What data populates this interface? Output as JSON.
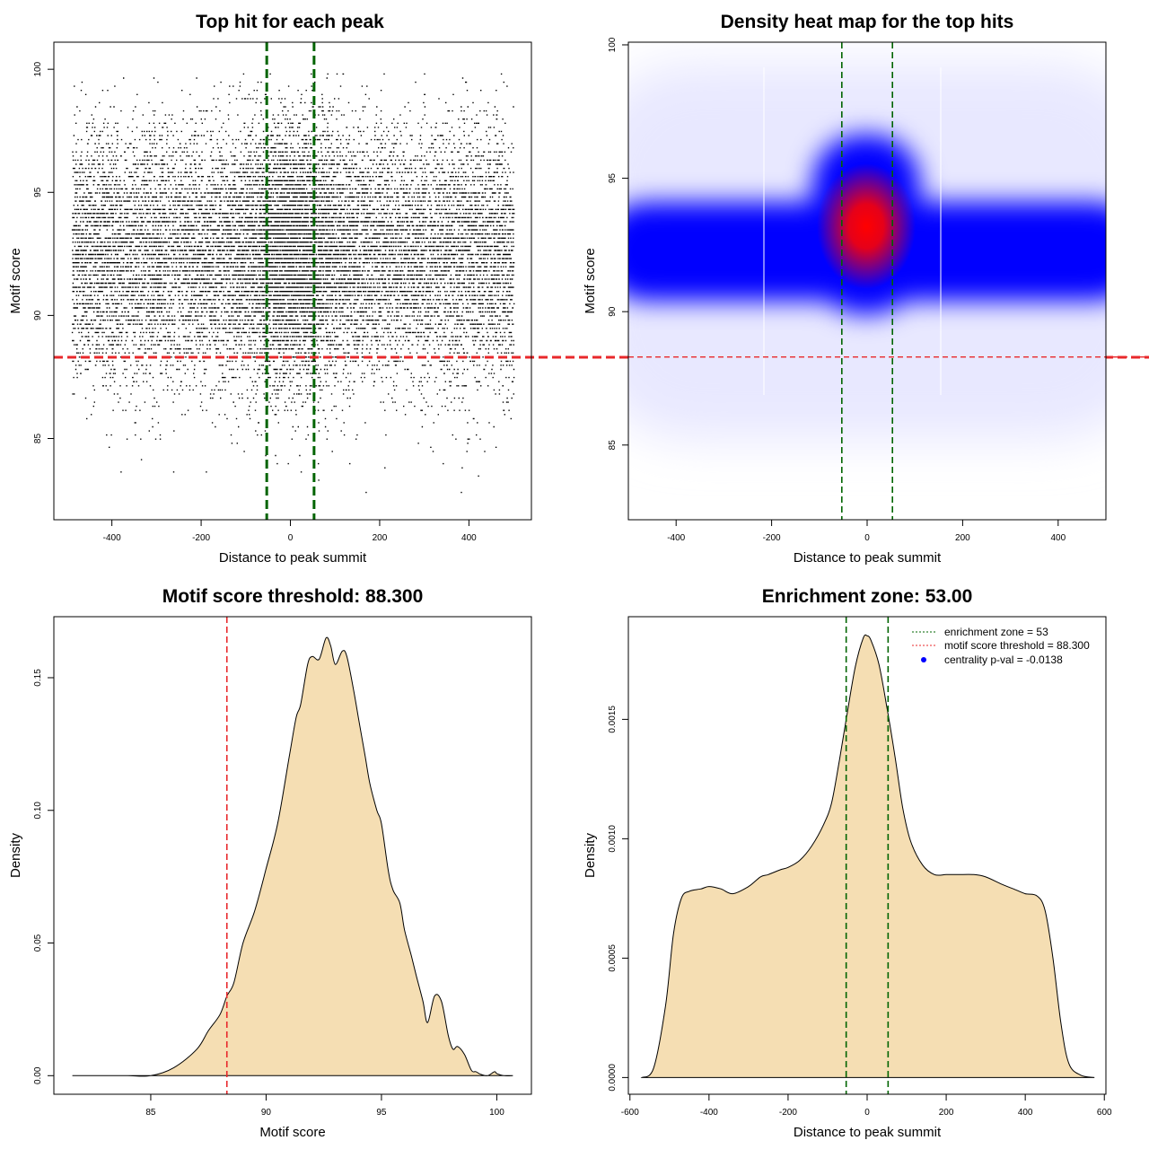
{
  "chart_data": [
    {
      "type": "scatter",
      "title": "Top hit for each peak",
      "xlabel": "Distance to peak summit",
      "ylabel": "Motif score",
      "xlim": [
        -530,
        540
      ],
      "ylim": [
        81.7,
        101.1
      ],
      "xticks": [
        -400,
        -200,
        0,
        200,
        400
      ],
      "yticks": [
        85,
        90,
        95,
        100
      ],
      "enrichment_zone_lines_x": [
        -53,
        53
      ],
      "threshold_line_y": 88.3,
      "point_distribution": {
        "x_range": [
          -490,
          500
        ],
        "y_center": 92.5,
        "y_spread": 2.6,
        "density_peak_x": 0,
        "approx_points": 16000
      },
      "colors": {
        "points": "#000000",
        "zone_lines": "#006400",
        "threshold_line": "#e8282b"
      }
    },
    {
      "type": "heatmap",
      "title": "Density heat map for the top hits",
      "xlabel": "Distance to peak summit",
      "ylabel": "Motif score",
      "xlim": [
        -500,
        500
      ],
      "ylim": [
        82.2,
        100.1
      ],
      "xticks": [
        -400,
        -200,
        0,
        200,
        400
      ],
      "yticks": [
        85,
        90,
        95,
        100
      ],
      "enrichment_zone_lines_x": [
        -53,
        53
      ],
      "threshold_line_y": 88.3,
      "density_peak": {
        "x": 0,
        "y": 93.3
      },
      "colors": {
        "low": "#ffffff",
        "mid": "#0000ff",
        "high": "#ff0000",
        "zone_lines": "#006400",
        "threshold_line": "#e8282b"
      }
    },
    {
      "type": "area",
      "title": "Motif score threshold: 88.300",
      "xlabel": "Motif score",
      "ylabel": "Density",
      "xlim": [
        80.8,
        101.5
      ],
      "ylim": [
        -0.007,
        0.173
      ],
      "xticks": [
        85,
        90,
        95,
        100
      ],
      "yticks": [
        0.0,
        0.05,
        0.1,
        0.15
      ],
      "ytick_labels": [
        "0.00",
        "0.05",
        "0.10",
        "0.15"
      ],
      "threshold_line_x": 88.3,
      "x": [
        81.6,
        83,
        84,
        85,
        86,
        87,
        87.5,
        88,
        88.3,
        88.6,
        89,
        89.5,
        90,
        90.5,
        91,
        91.3,
        91.5,
        91.8,
        92,
        92.3,
        92.6,
        92.8,
        93,
        93.3,
        93.5,
        93.8,
        94,
        94.3,
        94.5,
        94.8,
        95,
        95.3,
        95.5,
        95.8,
        96,
        96.3,
        96.5,
        96.8,
        97,
        97.3,
        97.6,
        97.9,
        98.1,
        98.3,
        98.6,
        98.9,
        99.1,
        99.3,
        99.6,
        99.9,
        100,
        100.3,
        100.7
      ],
      "y": [
        0.0,
        0.0,
        0.0,
        0.0,
        0.003,
        0.01,
        0.017,
        0.023,
        0.03,
        0.035,
        0.05,
        0.062,
        0.078,
        0.095,
        0.12,
        0.135,
        0.14,
        0.155,
        0.158,
        0.157,
        0.165,
        0.162,
        0.155,
        0.16,
        0.158,
        0.145,
        0.135,
        0.12,
        0.11,
        0.1,
        0.095,
        0.077,
        0.07,
        0.065,
        0.055,
        0.045,
        0.038,
        0.028,
        0.02,
        0.03,
        0.028,
        0.015,
        0.01,
        0.011,
        0.008,
        0.002,
        0.0015,
        0.0005,
        0.0,
        0.0015,
        0.0008,
        0.0,
        0.0
      ],
      "colors": {
        "fill": "#f5deb3",
        "line": "#000000",
        "threshold_line": "#e8282b"
      }
    },
    {
      "type": "area",
      "title": "Enrichment zone: 53.00",
      "xlabel": "Distance to peak summit",
      "ylabel": "Density",
      "xlim": [
        -604,
        604
      ],
      "ylim": [
        -7e-05,
        0.00193
      ],
      "xticks": [
        -600,
        -400,
        -200,
        0,
        200,
        400,
        600
      ],
      "yticks": [
        0.0,
        0.0005,
        0.001,
        0.0015
      ],
      "ytick_labels": [
        "0.0000",
        "0.0005",
        "0.0010",
        "0.0015"
      ],
      "enrichment_zone_lines_x": [
        -53,
        53
      ],
      "x": [
        -570,
        -540,
        -510,
        -490,
        -470,
        -450,
        -420,
        -400,
        -370,
        -340,
        -300,
        -270,
        -250,
        -220,
        -200,
        -170,
        -140,
        -110,
        -90,
        -70,
        -50,
        -30,
        -10,
        0,
        10,
        30,
        50,
        70,
        90,
        110,
        140,
        170,
        200,
        230,
        270,
        300,
        340,
        370,
        400,
        430,
        450,
        470,
        490,
        510,
        540,
        575
      ],
      "y": [
        0.0,
        4e-05,
        0.0003,
        0.0006,
        0.00075,
        0.00078,
        0.00079,
        0.0008,
        0.00079,
        0.00077,
        0.0008,
        0.00084,
        0.00085,
        0.00087,
        0.00088,
        0.00091,
        0.00097,
        0.00106,
        0.00115,
        0.00133,
        0.00153,
        0.00172,
        0.00184,
        0.00185,
        0.00183,
        0.00173,
        0.00155,
        0.00135,
        0.00113,
        0.00099,
        0.00089,
        0.00085,
        0.00085,
        0.00085,
        0.00085,
        0.00084,
        0.00081,
        0.00079,
        0.00077,
        0.00076,
        0.0007,
        0.0005,
        0.00023,
        6e-05,
        1e-05,
        0.0
      ],
      "legend": {
        "placement": "top-right",
        "entries": [
          {
            "label": "enrichment zone = 53",
            "color": "#006400",
            "style": "dotted-line"
          },
          {
            "label": "motif score threshold = 88.300",
            "color": "#e8282b",
            "style": "dotted-line"
          },
          {
            "label": "centrality p-val = -0.0138",
            "color": "#0000ff",
            "style": "point"
          }
        ]
      },
      "colors": {
        "fill": "#f5deb3",
        "line": "#000000",
        "zone_lines": "#006400"
      }
    }
  ]
}
